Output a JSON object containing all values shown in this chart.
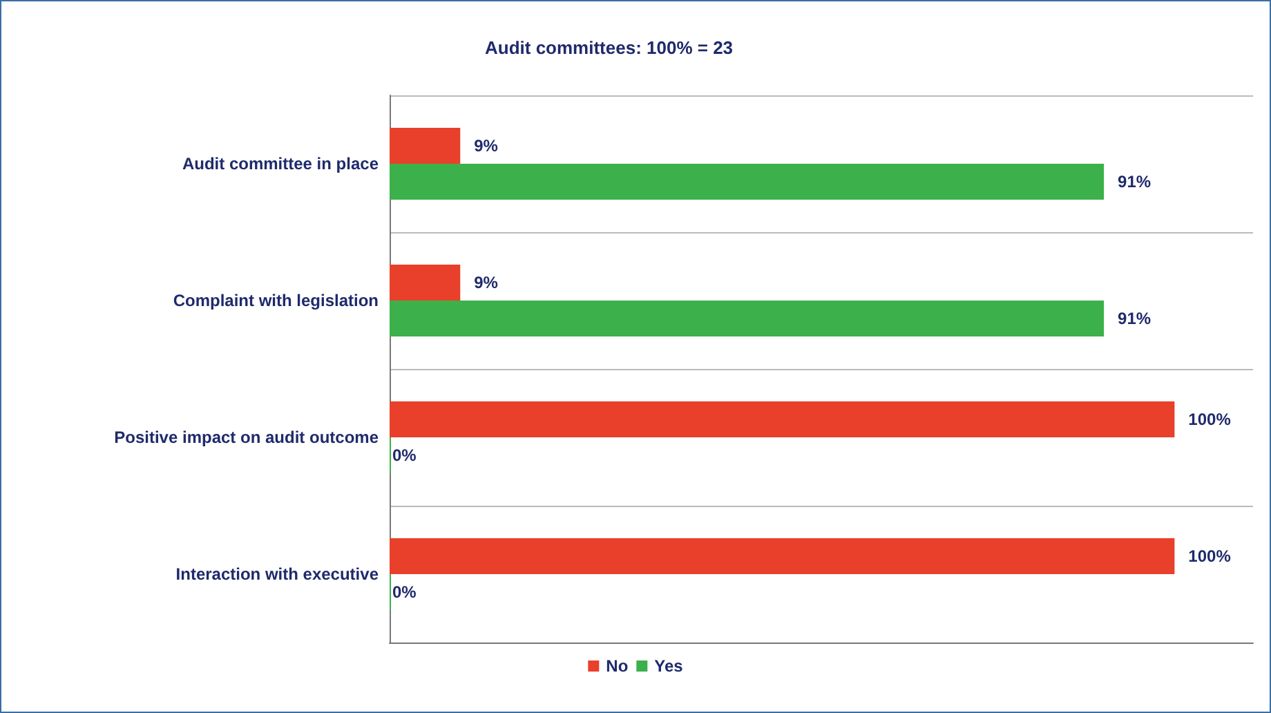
{
  "chart_data": {
    "type": "bar",
    "orientation": "horizontal",
    "title": "Audit committees: 100% = 23",
    "categories": [
      "Audit committee in place",
      "Complaint with legislation",
      "Positive impact on audit outcome",
      "Interaction with executive"
    ],
    "series": [
      {
        "name": "No",
        "color": "#e8402a",
        "values": [
          9,
          9,
          100,
          100
        ],
        "value_labels": [
          "9%",
          "9%",
          "100%",
          "100%"
        ]
      },
      {
        "name": "Yes",
        "color": "#3cb04a",
        "values": [
          91,
          91,
          0,
          0
        ],
        "value_labels": [
          "91%",
          "91%",
          "0%",
          "0%"
        ]
      }
    ],
    "xlim": [
      0,
      110
    ],
    "tick_labels": "y",
    "grid": "y",
    "legend": "bottom"
  }
}
